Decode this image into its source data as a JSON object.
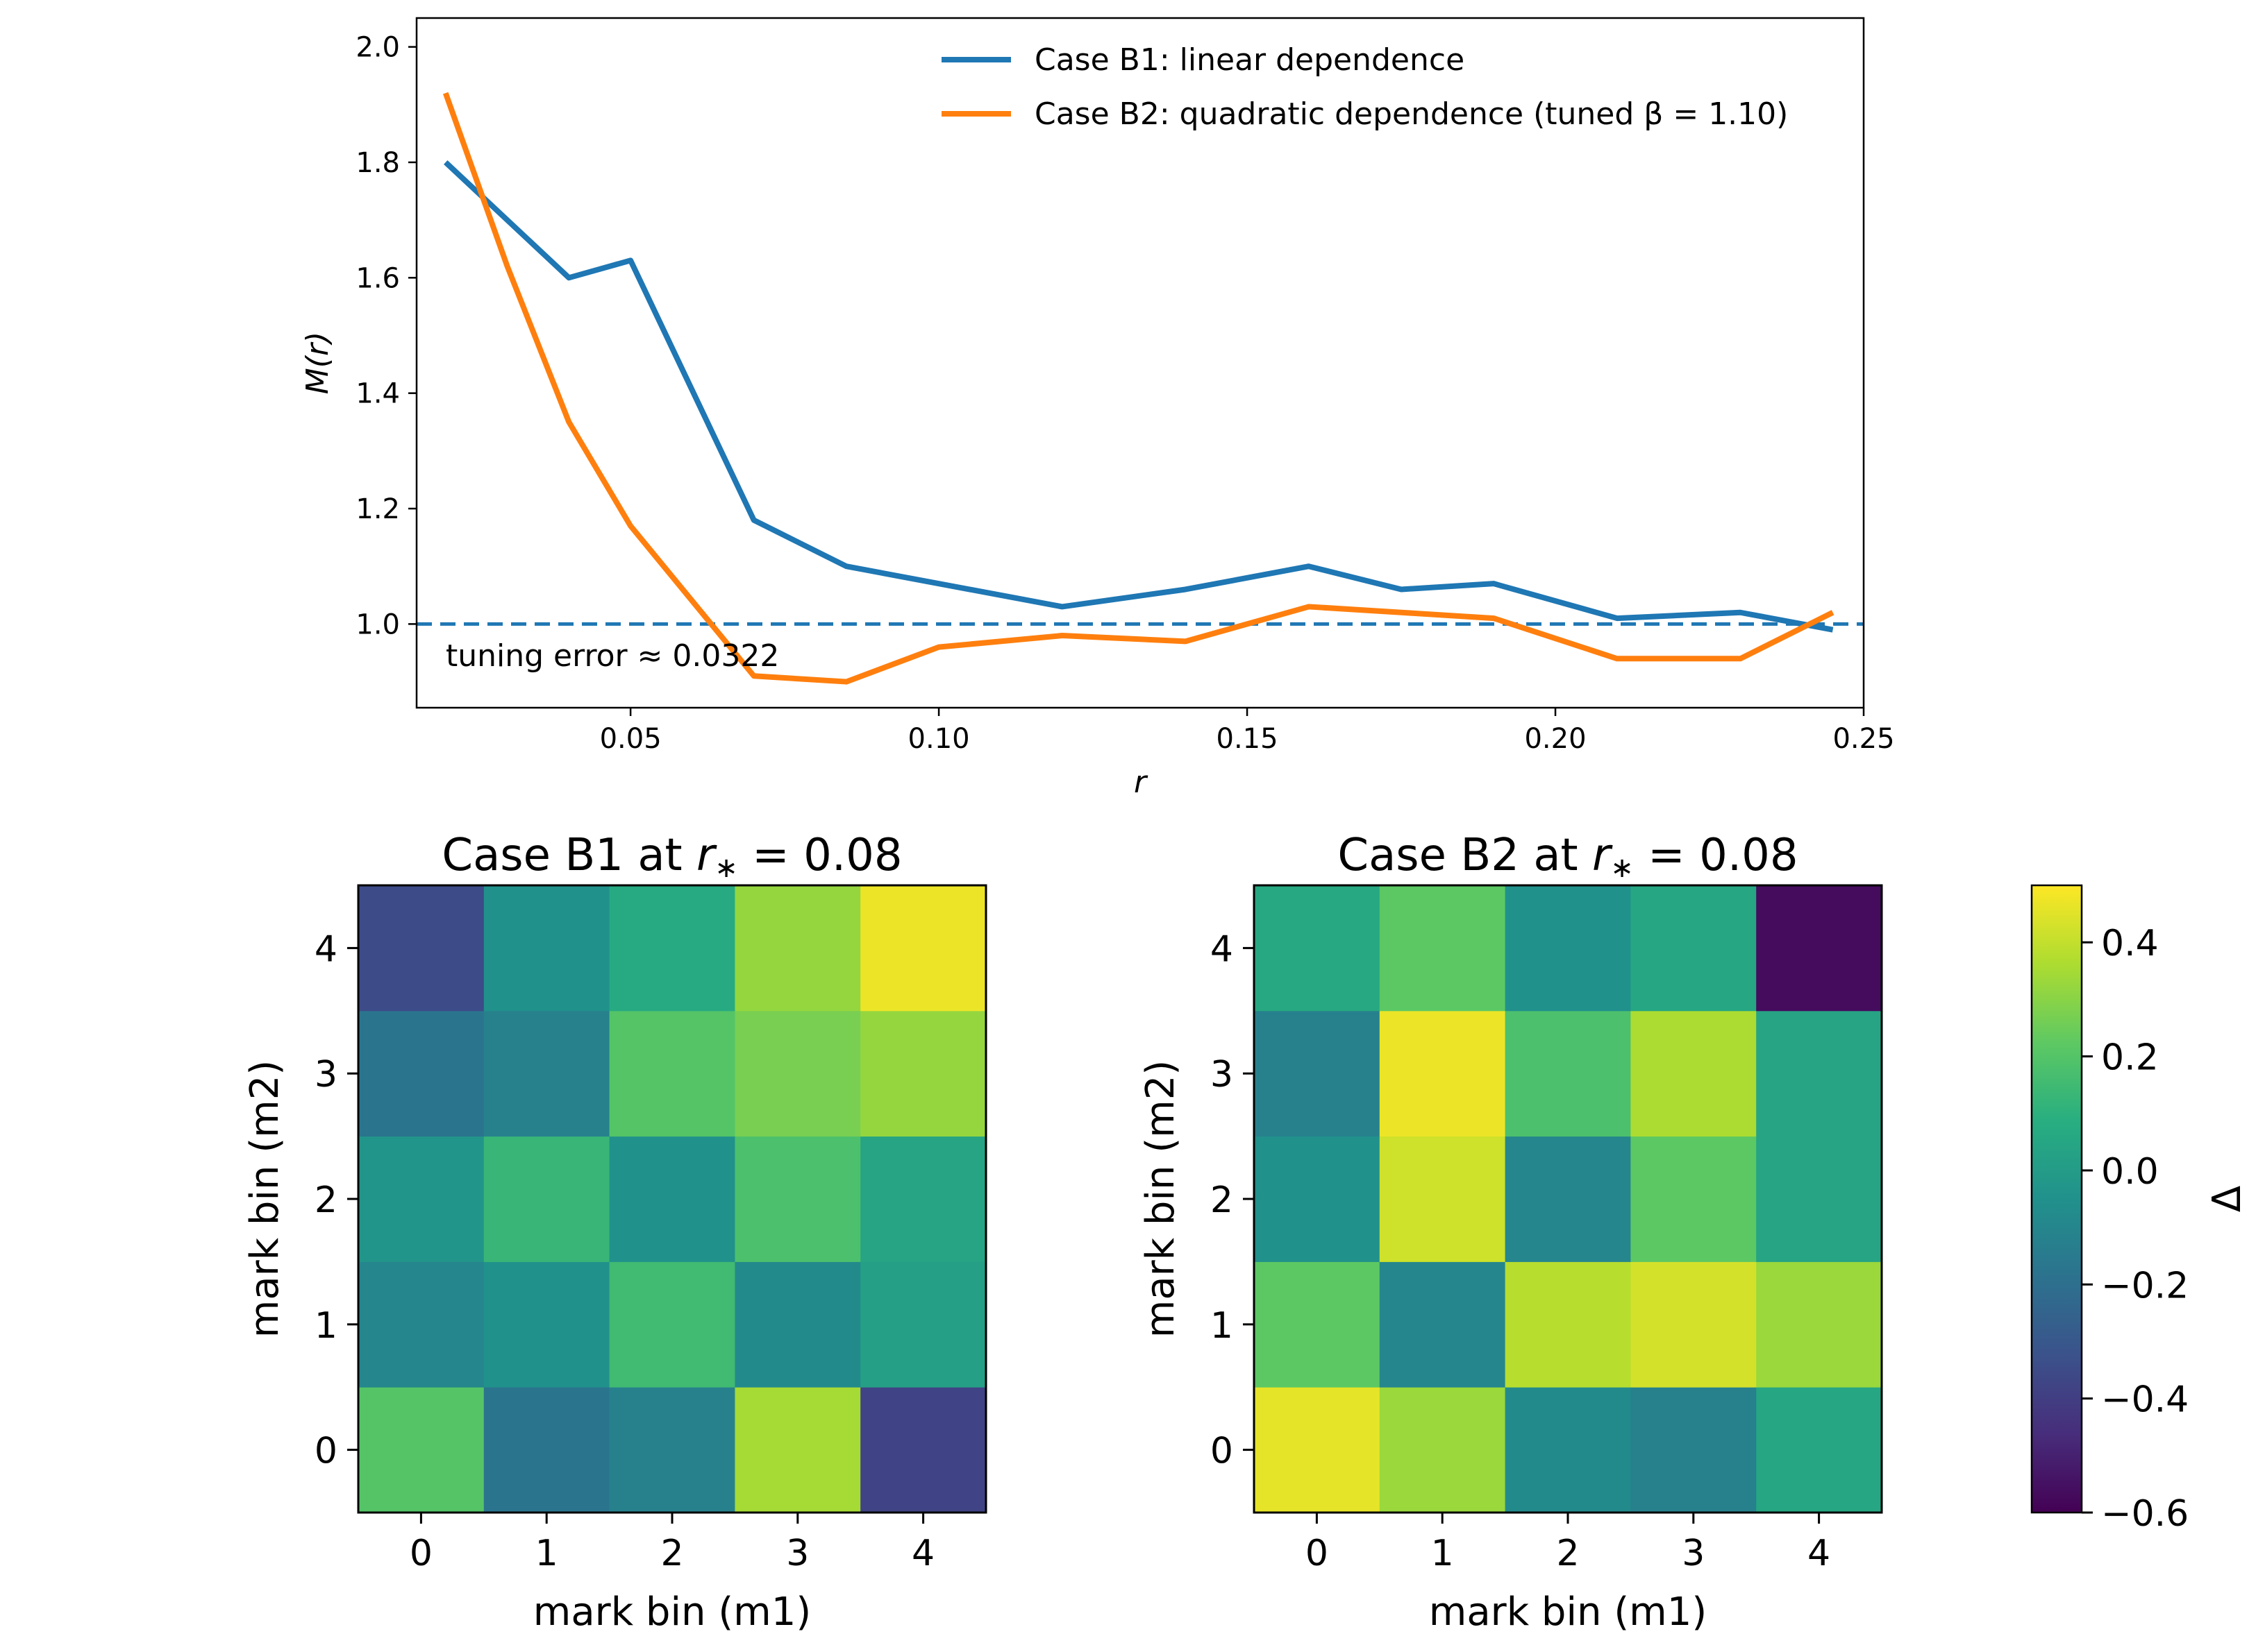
{
  "chart_data": [
    {
      "type": "line",
      "title": "",
      "xlabel": "r",
      "ylabel": "M(r)",
      "xlim": [
        0.0153,
        0.25
      ],
      "ylim": [
        0.855,
        2.05
      ],
      "xticks": [
        0.05,
        0.1,
        0.15,
        0.2,
        0.25
      ],
      "xtick_labels": [
        "0.05",
        "0.10",
        "0.15",
        "0.20",
        "0.25"
      ],
      "yticks": [
        1.0,
        1.2,
        1.4,
        1.6,
        1.8,
        2.0
      ],
      "ytick_labels": [
        "1.0",
        "1.2",
        "1.4",
        "1.6",
        "1.8",
        "2.0"
      ],
      "legend_position": "top-right",
      "series": [
        {
          "name": "Case B1: linear dependence",
          "color": "#1f77b4",
          "x": [
            0.02,
            0.04,
            0.05,
            0.07,
            0.085,
            0.1,
            0.12,
            0.14,
            0.16,
            0.175,
            0.19,
            0.21,
            0.23,
            0.245
          ],
          "y": [
            1.8,
            1.6,
            1.63,
            1.18,
            1.1,
            1.07,
            1.03,
            1.06,
            1.1,
            1.06,
            1.07,
            1.01,
            1.02,
            0.99
          ]
        },
        {
          "name": "Case B2: quadratic dependence (tuned β = 1.10)",
          "color": "#ff7f0e",
          "x": [
            0.02,
            0.03,
            0.04,
            0.05,
            0.07,
            0.085,
            0.1,
            0.12,
            0.14,
            0.16,
            0.175,
            0.19,
            0.21,
            0.23,
            0.245
          ],
          "y": [
            1.92,
            1.62,
            1.35,
            1.17,
            0.91,
            0.9,
            0.96,
            0.98,
            0.97,
            1.03,
            1.02,
            1.01,
            0.94,
            0.94,
            1.02
          ]
        }
      ],
      "reference_line": {
        "y": 1.0,
        "style": "dashed",
        "color": "#1f77b4"
      },
      "annotation": "tuning error  ≈ 0.0322"
    },
    {
      "type": "heatmap",
      "title": "Case B1 at r∗ = 0.08",
      "title_prefix": "Case B1 at ",
      "title_var": "r",
      "title_sub": "∗",
      "title_suffix": " = 0.08",
      "xlabel": "mark bin (m1)",
      "ylabel": "mark bin (m2)",
      "x_categories": [
        "0",
        "1",
        "2",
        "3",
        "4"
      ],
      "y_categories": [
        "0",
        "1",
        "2",
        "3",
        "4"
      ],
      "values_rows_m2_0_to_4": [
        [
          0.2,
          -0.18,
          -0.12,
          0.35,
          -0.38
        ],
        [
          -0.1,
          -0.05,
          0.15,
          -0.08,
          0.02
        ],
        [
          -0.03,
          0.13,
          -0.05,
          0.18,
          0.04
        ],
        [
          -0.18,
          -0.12,
          0.2,
          0.27,
          0.32
        ],
        [
          -0.35,
          -0.05,
          0.07,
          0.32,
          0.47
        ]
      ]
    },
    {
      "type": "heatmap",
      "title": "Case B2 at r∗ = 0.08",
      "title_prefix": "Case B2 at ",
      "title_var": "r",
      "title_sub": "∗",
      "title_suffix": " = 0.08",
      "xlabel": "mark bin (m1)",
      "ylabel": "mark bin (m2)",
      "x_categories": [
        "0",
        "1",
        "2",
        "3",
        "4"
      ],
      "y_categories": [
        "0",
        "1",
        "2",
        "3",
        "4"
      ],
      "values_rows_m2_0_to_4": [
        [
          0.46,
          0.33,
          -0.08,
          -0.12,
          0.05
        ],
        [
          0.22,
          -0.1,
          0.38,
          0.43,
          0.33
        ],
        [
          -0.05,
          0.42,
          -0.1,
          0.22,
          0.04
        ],
        [
          -0.12,
          0.47,
          0.18,
          0.36,
          0.04
        ],
        [
          0.06,
          0.22,
          -0.05,
          0.05,
          -0.57
        ]
      ]
    }
  ],
  "colorbar": {
    "label": "Δ",
    "range": [
      -0.6,
      0.5
    ],
    "ticks": [
      0.4,
      0.2,
      0.0,
      -0.2,
      -0.4,
      -0.6
    ],
    "tick_labels": [
      "0.4",
      "0.2",
      "0.0",
      "−0.2",
      "−0.4",
      "−0.6"
    ],
    "colormap": "viridis"
  }
}
